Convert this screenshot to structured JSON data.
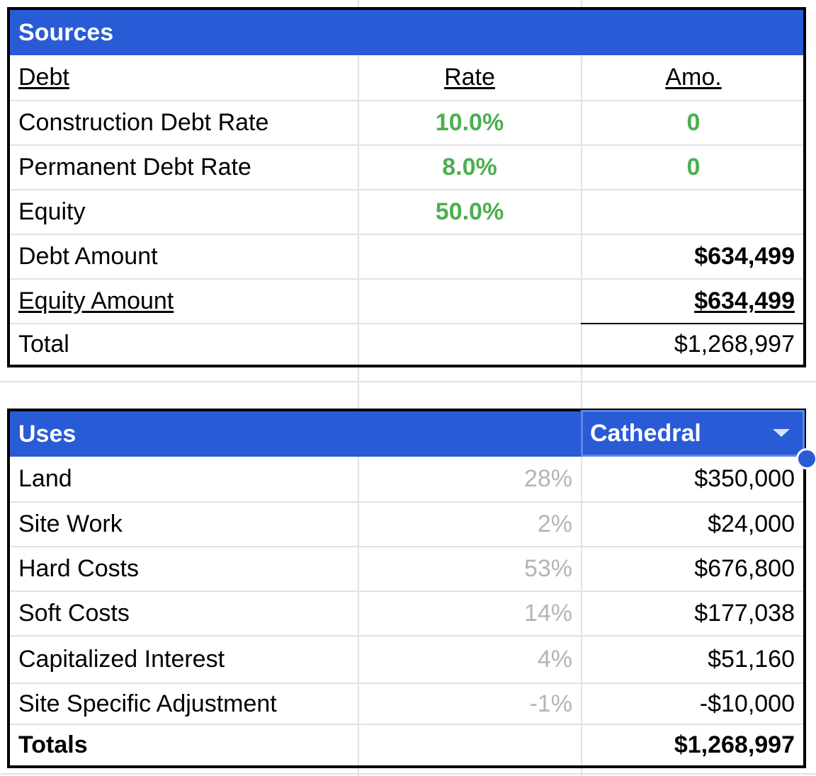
{
  "sources": {
    "title": "Sources",
    "header": {
      "col1": "Debt",
      "col2": "Rate",
      "col3": "Amo."
    },
    "rows": [
      {
        "label": "Construction Debt Rate",
        "rate": "10.0%",
        "amount": "0"
      },
      {
        "label": "Permanent Debt Rate",
        "rate": "8.0%",
        "amount": "0"
      },
      {
        "label": "Equity",
        "rate": "50.0%",
        "amount": ""
      },
      {
        "label": "Debt Amount",
        "rate": "",
        "amount": "$634,499"
      },
      {
        "label": "Equity Amount",
        "rate": "",
        "amount": "$634,499"
      },
      {
        "label": "Total",
        "rate": "",
        "amount": "$1,268,997"
      }
    ]
  },
  "uses": {
    "title": "Uses",
    "dropdown_value": "Cathedral",
    "rows": [
      {
        "label": "Land",
        "pct": "28%",
        "amount": "$350,000"
      },
      {
        "label": "Site Work",
        "pct": "2%",
        "amount": "$24,000"
      },
      {
        "label": "Hard Costs",
        "pct": "53%",
        "amount": "$676,800"
      },
      {
        "label": "Soft Costs",
        "pct": "14%",
        "amount": "$177,038"
      },
      {
        "label": "Capitalized Interest",
        "pct": "4%",
        "amount": "$51,160"
      },
      {
        "label": "Site Specific Adjustment",
        "pct": "-1%",
        "amount": "-$10,000"
      }
    ],
    "totals": {
      "label": "Totals",
      "amount": "$1,268,997"
    }
  },
  "colors": {
    "header_blue": "#2a5bd6",
    "rate_green": "#4caf50",
    "pct_gray": "#b5b5b5"
  },
  "icons": {
    "dropdown": "caret-down-icon",
    "selection_handle": "fill-handle-icon"
  }
}
